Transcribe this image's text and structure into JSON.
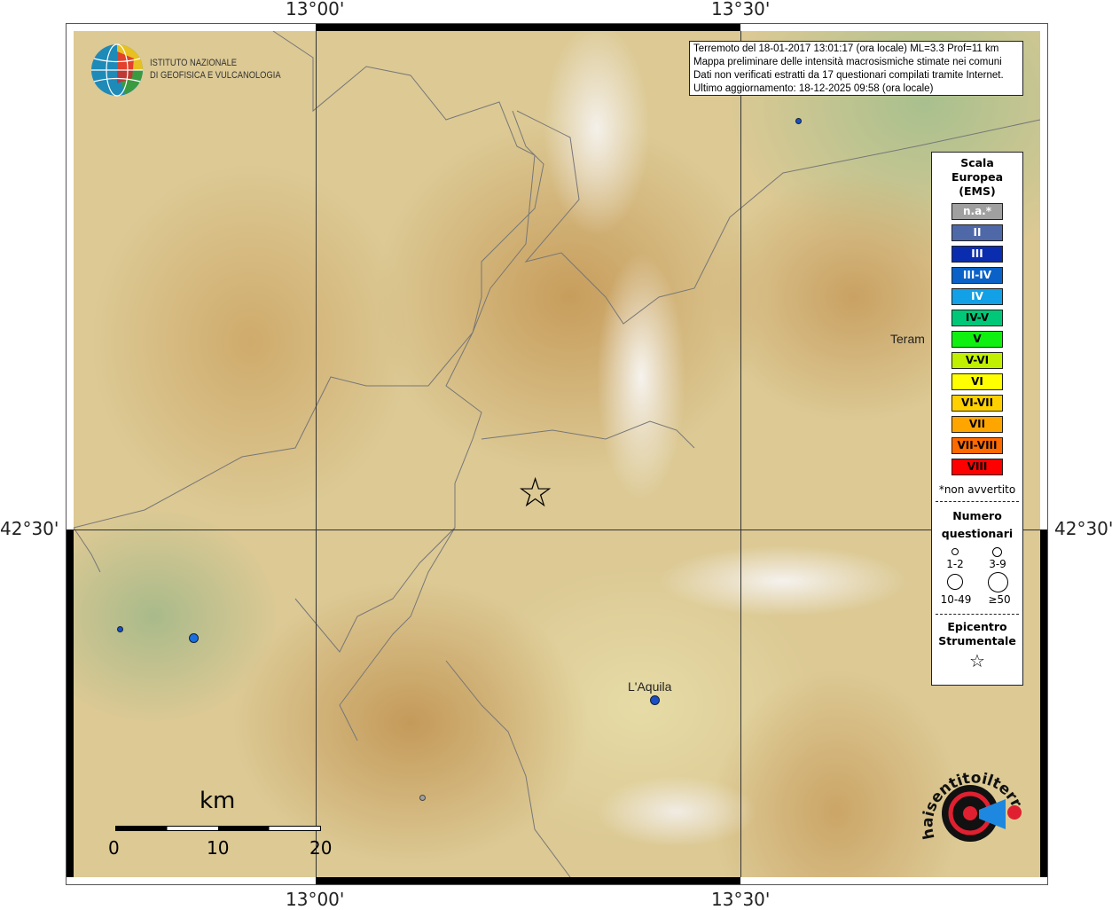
{
  "axes": {
    "top": [
      "13°00'",
      "13°30'"
    ],
    "bottom": [
      "13°00'",
      "13°30'"
    ],
    "left": "42°30'",
    "right": "42°30'"
  },
  "logo": {
    "line1": "ISTITUTO NAZIONALE",
    "line2": "DI GEOFISICA E VULCANOLOGIA"
  },
  "info": [
    "Terremoto del 18-01-2017 13:01:17 (ora locale) ML=3.3 Prof=11 km",
    "Mappa preliminare delle intensità macrosismiche stimate nei comuni",
    "Dati non verificati estratti da 17 questionari compilati tramite Internet.",
    "Ultimo aggiornamento: 18-12-2025 09:58 (ora locale)"
  ],
  "legend": {
    "title": [
      "Scala",
      "Europea",
      "(EMS)"
    ],
    "scale": [
      {
        "label": "n.a.*",
        "color": "#a0a0a0",
        "text": "#ffffff"
      },
      {
        "label": "II",
        "color": "#4f68a8",
        "text": "#ffffff"
      },
      {
        "label": "III",
        "color": "#0a2db0",
        "text": "#ffffff"
      },
      {
        "label": "III-IV",
        "color": "#0a62c8",
        "text": "#ffffff"
      },
      {
        "label": "IV",
        "color": "#12a0e6",
        "text": "#ffffff"
      },
      {
        "label": "IV-V",
        "color": "#00c878",
        "text": "#000000"
      },
      {
        "label": "V",
        "color": "#10f010",
        "text": "#000000"
      },
      {
        "label": "V-VI",
        "color": "#c0f000",
        "text": "#000000"
      },
      {
        "label": "VI",
        "color": "#ffff00",
        "text": "#000000"
      },
      {
        "label": "VI-VII",
        "color": "#ffd000",
        "text": "#000000"
      },
      {
        "label": "VII",
        "color": "#ffa500",
        "text": "#000000"
      },
      {
        "label": "VII-VIII",
        "color": "#ff6a00",
        "text": "#000000"
      },
      {
        "label": "VIII",
        "color": "#ff0000",
        "text": "#000000"
      }
    ],
    "note": "*non avvertito",
    "count_title": [
      "Numero",
      "questionari"
    ],
    "counts": [
      "1-2",
      "3-9",
      "10-49",
      "≥50"
    ],
    "epicenter": [
      "Epicentro",
      "Strumentale"
    ]
  },
  "towns": [
    "Teram",
    "L'Aquila"
  ],
  "scalebar": {
    "unit": "km",
    "ticks": [
      "0",
      "10",
      "20"
    ]
  },
  "watermark": "www.haisentitoilterremoto.it"
}
